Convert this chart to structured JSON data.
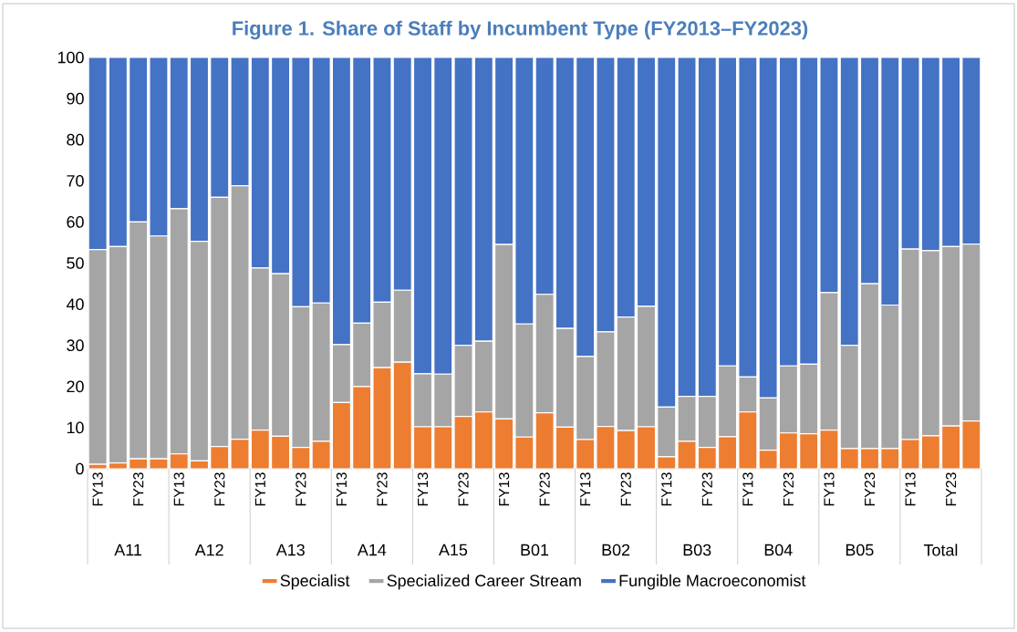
{
  "chart_data": {
    "type": "bar",
    "stacked": true,
    "title": "Figure 1. Share of Staff by Incumbent Type (FY2013–FY2023)",
    "categories": [
      "FY13",
      null,
      "FY23",
      null,
      "FY13",
      null,
      "FY23",
      null,
      "FY13",
      null,
      "FY23",
      null,
      "FY13",
      null,
      "FY23",
      null,
      "FY13",
      null,
      "FY23",
      null,
      "FY13",
      null,
      "FY23",
      null,
      "FY13",
      null,
      "FY23",
      null,
      "FY13",
      null,
      "FY23",
      null,
      "FY13",
      null,
      "FY23",
      null,
      "FY13",
      null,
      "FY23",
      null,
      "FY13",
      null,
      "FY23",
      null
    ],
    "annotations": [
      "A11",
      "A12",
      "A13",
      "A14",
      "A15",
      "B01",
      "B02",
      "B03",
      "B04",
      "B05",
      "Total"
    ],
    "series": [
      {
        "name": "Specialist",
        "color": "#ed7d31",
        "values": [
          1.1,
          1.4,
          2.4,
          2.4,
          3.6,
          1.9,
          5.4,
          7.2,
          9.4,
          7.9,
          5.2,
          6.7,
          16.1,
          20,
          24.6,
          25.9,
          10.2,
          10.2,
          12.7,
          13.8,
          12.1,
          7.7,
          13.6,
          10.1,
          7.1,
          10.3,
          9.3,
          10.2,
          2.9,
          6.7,
          5.2,
          7.8,
          13.8,
          4.5,
          8.7,
          8.5,
          9.4,
          4.9,
          4.9,
          4.9,
          7.1,
          8,
          10.4,
          11.6
        ]
      },
      {
        "name": "Specialized Career Stream",
        "color": "#a5a5a5",
        "values": [
          52.2,
          52.6,
          57.6,
          54.2,
          59.6,
          53.4,
          60.6,
          61.6,
          39.4,
          39.5,
          34.2,
          33.6,
          14.1,
          15.4,
          15.9,
          17.5,
          12.9,
          12.8,
          17.3,
          17.2,
          42.4,
          27.5,
          28.8,
          24,
          20.2,
          23,
          27.6,
          29.3,
          12.1,
          10.9,
          12.4,
          17.2,
          8.5,
          12.7,
          16.3,
          16.9,
          33.4,
          25.1,
          40.1,
          34.9,
          46.3,
          45,
          43.6,
          43
        ]
      },
      {
        "name": "Fungible Macroeconomist",
        "color": "#4472c4",
        "values": [
          46.7,
          46,
          40,
          43.4,
          36.8,
          44.7,
          34,
          31.2,
          51.2,
          52.6,
          60.6,
          59.7,
          69.8,
          64.6,
          59.5,
          56.6,
          76.9,
          77,
          70,
          69,
          45.5,
          64.8,
          57.6,
          65.9,
          72.7,
          66.7,
          63.1,
          60.5,
          85,
          82.4,
          82.4,
          75,
          77.7,
          82.8,
          75,
          74.6,
          57.2,
          70,
          55,
          60.2,
          46.6,
          47,
          46,
          45.4
        ]
      }
    ],
    "ylim": [
      0,
      100
    ],
    "yticks": [
      0,
      10,
      20,
      30,
      40,
      50,
      60,
      70,
      80,
      90,
      100
    ],
    "legend": "bottom"
  }
}
